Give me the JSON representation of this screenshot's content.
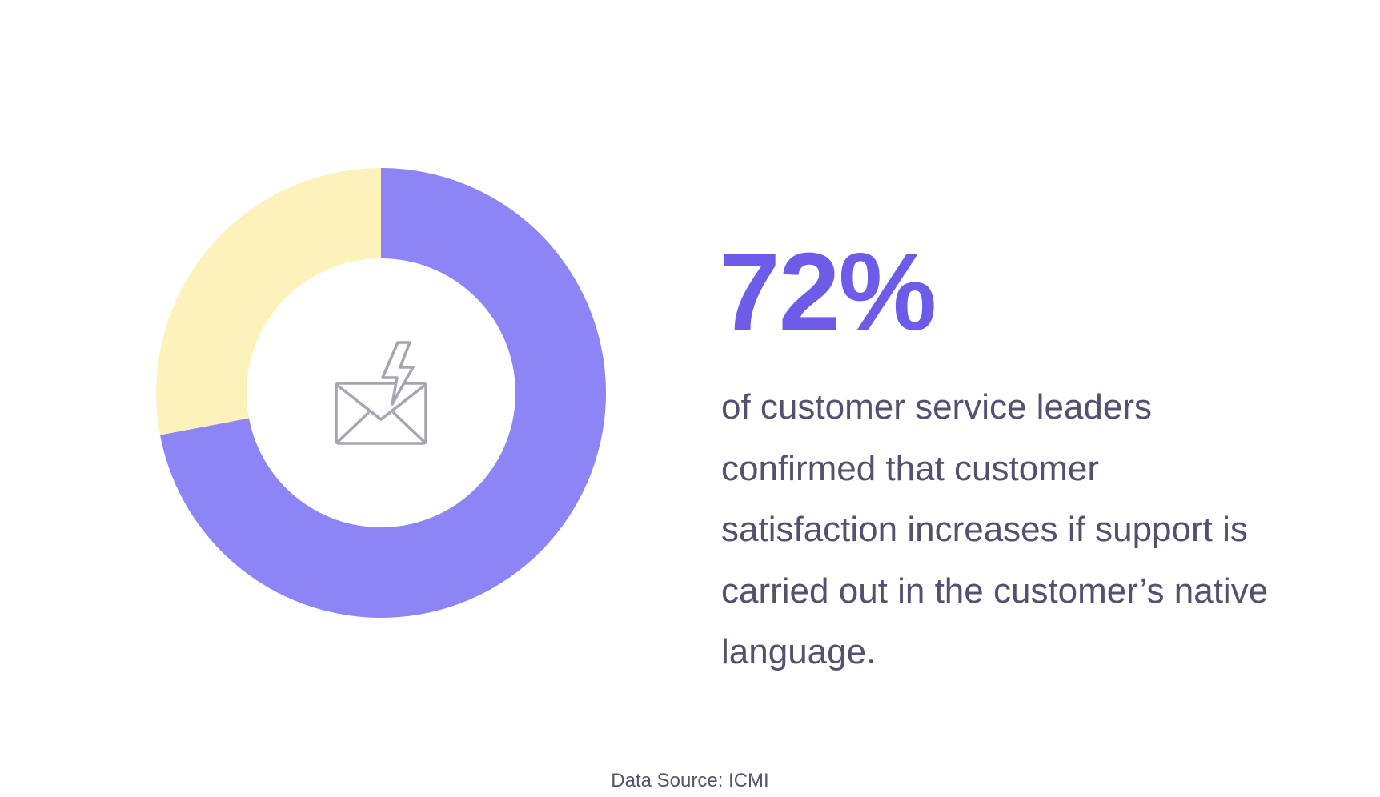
{
  "chart_data": {
    "type": "pie",
    "style": "donut",
    "slices": [
      {
        "value": 72,
        "color": "#8d84f6"
      },
      {
        "value": 28,
        "color": "#fdf2bb"
      }
    ],
    "center_icon": "email-lightning-icon",
    "start_angle": "top",
    "direction": "clockwise"
  },
  "stat": {
    "value": "72%",
    "color": "#6c5ce7"
  },
  "description": {
    "lines": [
      "of customer service leaders",
      "confirmed that customer",
      "satisfaction increases if support is",
      "carried out in the customer’s native",
      "language."
    ]
  },
  "source": {
    "text": "Data Source: ICMI"
  },
  "colors": {
    "background": "#ffffff",
    "body_text": "#525270",
    "icon_stroke": "#a7a4b1"
  }
}
